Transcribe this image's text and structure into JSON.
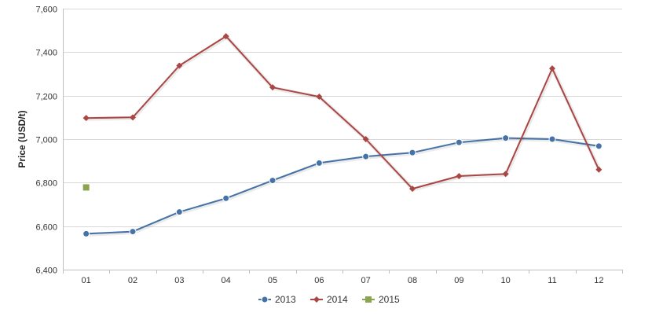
{
  "chart_data": {
    "type": "line",
    "title": "",
    "xlabel": "",
    "ylabel": "Price (USD/t)",
    "categories": [
      "01",
      "02",
      "03",
      "04",
      "05",
      "06",
      "07",
      "08",
      "09",
      "10",
      "11",
      "12"
    ],
    "ylim": [
      6400,
      7600
    ],
    "yticks": [
      6400,
      6600,
      6800,
      7000,
      7200,
      7400,
      7600
    ],
    "ytick_labels": [
      "6,400",
      "6,600",
      "6,800",
      "7,000",
      "7,200",
      "7,400",
      "7,600"
    ],
    "grid": true,
    "legend_position": "bottom-center",
    "series": [
      {
        "name": "2013",
        "color": "#4572a7",
        "marker": "circle",
        "values": [
          6565,
          6575,
          6665,
          6728,
          6810,
          6890,
          6920,
          6938,
          6985,
          7005,
          7000,
          6968
        ]
      },
      {
        "name": "2014",
        "color": "#aa4643",
        "marker": "diamond",
        "values": [
          7097,
          7100,
          7338,
          7473,
          7238,
          7195,
          7000,
          6772,
          6830,
          6840,
          7325,
          6860
        ]
      },
      {
        "name": "2015",
        "color": "#89a54e",
        "marker": "square",
        "values": [
          6778,
          null,
          null,
          null,
          null,
          null,
          null,
          null,
          null,
          null,
          null,
          null
        ]
      }
    ]
  }
}
